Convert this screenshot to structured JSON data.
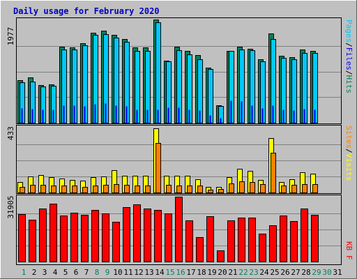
{
  "chart_data": [
    {
      "type": "bar",
      "title": "Daily usage for February 2020",
      "categories": [
        "1",
        "2",
        "3",
        "4",
        "5",
        "6",
        "7",
        "8",
        "9",
        "10",
        "11",
        "12",
        "13",
        "14",
        "15",
        "16",
        "17",
        "18",
        "19",
        "20",
        "21",
        "22",
        "23",
        "24",
        "25",
        "26",
        "27",
        "28",
        "29",
        "30",
        "31"
      ],
      "weekend_days": [
        "1",
        "8",
        "9",
        "15",
        "16",
        "22",
        "23",
        "29",
        "30"
      ],
      "ymax_label": "1977",
      "ymax": 1977,
      "series": [
        {
          "name": "Hits",
          "color": "#00805c",
          "values": [
            820,
            880,
            730,
            740,
            1470,
            1450,
            1530,
            1730,
            1780,
            1700,
            1610,
            1450,
            1450,
            1990,
            1200,
            1460,
            1390,
            1310,
            1060,
            330,
            1390,
            1470,
            1420,
            1230,
            1720,
            1290,
            1260,
            1410,
            1380,
            0,
            0
          ]
        },
        {
          "name": "Files",
          "color": "#00c8f8",
          "values": [
            780,
            800,
            700,
            710,
            1410,
            1410,
            1490,
            1690,
            1710,
            1640,
            1560,
            1390,
            1390,
            1930,
            1180,
            1400,
            1320,
            1220,
            1040,
            320,
            1390,
            1410,
            1400,
            1190,
            1610,
            1250,
            1230,
            1350,
            1350,
            0,
            0
          ]
        },
        {
          "name": "Pages",
          "color": "#0000ff",
          "values": [
            280,
            270,
            260,
            260,
            340,
            330,
            320,
            360,
            370,
            330,
            320,
            260,
            260,
            260,
            300,
            300,
            260,
            240,
            150,
            100,
            430,
            420,
            330,
            280,
            330,
            260,
            240,
            270,
            260,
            0,
            0
          ]
        }
      ],
      "ylabel_parts": [
        "Pages",
        "/",
        "Files",
        "/",
        "Hits"
      ]
    },
    {
      "type": "bar",
      "ymax_label": "433",
      "ymax": 433,
      "series": [
        {
          "name": "Visits",
          "color": "#ffff00",
          "values": [
            70,
            110,
            120,
            105,
            95,
            85,
            80,
            105,
            110,
            150,
            115,
            115,
            115,
            435,
            115,
            115,
            115,
            90,
            40,
            40,
            105,
            160,
            145,
            85,
            365,
            70,
            90,
            135,
            125,
            0,
            0
          ]
        },
        {
          "name": "Sites",
          "color": "#ff8000",
          "values": [
            40,
            50,
            50,
            45,
            45,
            45,
            40,
            45,
            50,
            55,
            50,
            45,
            45,
            335,
            50,
            45,
            45,
            45,
            20,
            25,
            60,
            75,
            70,
            55,
            270,
            45,
            50,
            55,
            55,
            0,
            0
          ]
        }
      ],
      "ylabel_parts": [
        "Sites",
        "/",
        "Visits"
      ]
    },
    {
      "type": "bar",
      "ymax_label": "31905",
      "ymax": 31905,
      "series": [
        {
          "name": "KB F",
          "color": "#ff0000",
          "values": [
            23600,
            20800,
            26500,
            28700,
            22900,
            24300,
            23400,
            25800,
            23800,
            19900,
            27100,
            28600,
            26500,
            25700,
            23800,
            32200,
            20400,
            12200,
            22700,
            5700,
            20600,
            21700,
            21800,
            14000,
            17900,
            23000,
            20000,
            26300,
            23300,
            0,
            0
          ]
        }
      ],
      "ylabel_parts": [
        "KB F"
      ]
    }
  ]
}
